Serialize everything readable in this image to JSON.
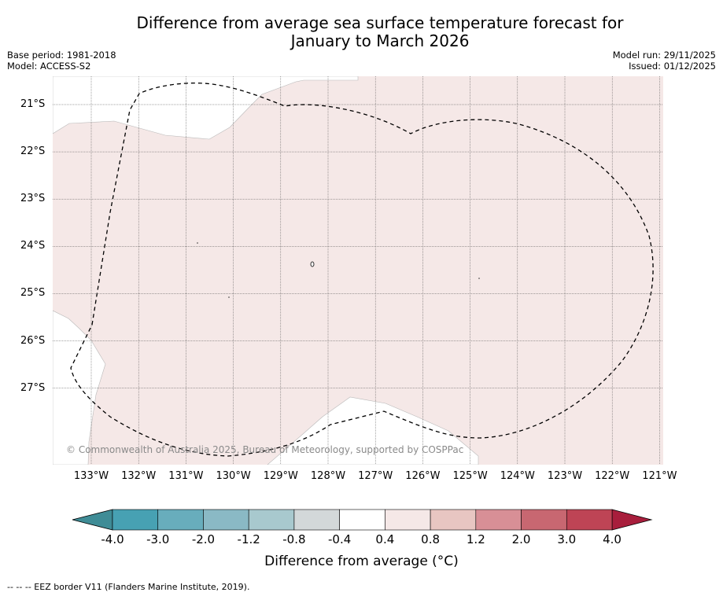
{
  "title": {
    "line1": "Difference from average sea surface temperature forecast for",
    "line2": "January to March 2026"
  },
  "meta": {
    "base_period": "Base period: 1981-2018",
    "model": "Model: ACCESS-S2",
    "model_run": "Model run: 29/11/2025",
    "issued": "Issued: 01/12/2025"
  },
  "map": {
    "land_color": "#ffffff",
    "sea_color": "#f5e8e7",
    "latitudes": [
      "21°S",
      "22°S",
      "23°S",
      "24°S",
      "25°S",
      "26°S",
      "27°S"
    ],
    "longitudes": [
      "133°W",
      "132°W",
      "131°W",
      "130°W",
      "129°W",
      "128°W",
      "127°W",
      "126°W",
      "125°W",
      "124°W",
      "123°W",
      "122°W",
      "121°W"
    ],
    "copyright": "© Commonwealth of Australia 2025, Bureau of Meteorology, supported by COSPPac"
  },
  "colorbar": {
    "labels": [
      "-4.0",
      "-3.0",
      "-2.0",
      "-1.2",
      "-0.8",
      "-0.4",
      "0.4",
      "0.8",
      "1.2",
      "2.0",
      "3.0",
      "4.0"
    ],
    "colors": [
      "#47a1b3",
      "#68adbc",
      "#8ab9c5",
      "#a8c9ce",
      "#d3d8d9",
      "#ffffff",
      "#f5e8e7",
      "#e8c6c2",
      "#d88f96",
      "#c86771",
      "#be4455"
    ],
    "extend_low_color": "#3f8c96",
    "extend_high_color": "#a81e3c",
    "title": "Difference from average (°C)"
  },
  "footnote": "--  --  -- EEZ border V11 (Flanders Marine Institute, 2019)."
}
